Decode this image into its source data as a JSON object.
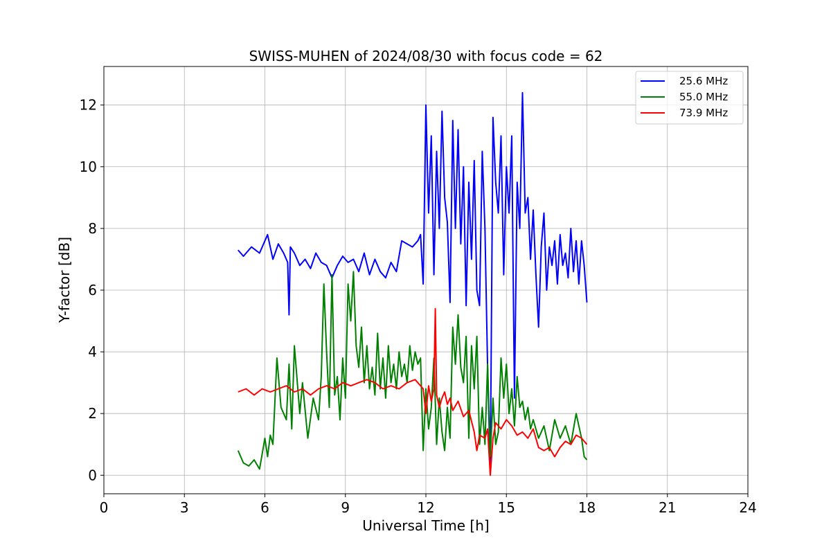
{
  "chart_data": {
    "type": "line",
    "title": "SWISS-MUHEN of 2024/08/30 with focus code = 62",
    "xlabel": "Universal Time [h]",
    "ylabel": "Y-factor [dB]",
    "xlim": [
      0,
      24
    ],
    "ylim": [
      -0.6,
      13.25
    ],
    "xticks": [
      0,
      3,
      6,
      9,
      12,
      15,
      18,
      21,
      24
    ],
    "yticks": [
      0,
      2,
      4,
      6,
      8,
      10,
      12
    ],
    "grid": true,
    "legend_position": "top-right",
    "series": [
      {
        "name": "25.6 MHz",
        "color": "#0000ff",
        "x": [
          5.0,
          5.2,
          5.5,
          5.8,
          6.1,
          6.3,
          6.5,
          6.7,
          6.85,
          6.9,
          6.95,
          7.1,
          7.3,
          7.5,
          7.7,
          7.9,
          8.1,
          8.3,
          8.5,
          8.7,
          8.9,
          9.1,
          9.3,
          9.5,
          9.7,
          9.9,
          10.1,
          10.3,
          10.5,
          10.7,
          10.9,
          11.1,
          11.3,
          11.5,
          11.7,
          11.8,
          11.9,
          12.0,
          12.1,
          12.2,
          12.3,
          12.4,
          12.5,
          12.6,
          12.7,
          12.8,
          12.9,
          13.0,
          13.1,
          13.2,
          13.3,
          13.4,
          13.5,
          13.6,
          13.7,
          13.8,
          13.9,
          14.0,
          14.1,
          14.2,
          14.3,
          14.4,
          14.5,
          14.6,
          14.7,
          14.8,
          14.9,
          15.0,
          15.1,
          15.2,
          15.3,
          15.4,
          15.5,
          15.6,
          15.7,
          15.8,
          15.9,
          16.0,
          16.1,
          16.2,
          16.3,
          16.4,
          16.5,
          16.6,
          16.7,
          16.8,
          16.9,
          17.0,
          17.1,
          17.2,
          17.3,
          17.4,
          17.5,
          17.6,
          17.7,
          17.8,
          17.9,
          18.0
        ],
        "values": [
          7.3,
          7.1,
          7.4,
          7.2,
          7.8,
          7.0,
          7.5,
          7.2,
          6.9,
          5.2,
          7.4,
          7.2,
          6.8,
          7.0,
          6.7,
          7.2,
          6.9,
          6.8,
          6.4,
          6.8,
          7.1,
          6.9,
          7.0,
          6.6,
          7.2,
          6.5,
          7.0,
          6.6,
          6.4,
          6.9,
          6.6,
          7.6,
          7.5,
          7.4,
          7.6,
          7.8,
          6.2,
          12.0,
          8.5,
          11.0,
          6.5,
          10.5,
          8.0,
          11.8,
          9.0,
          8.2,
          5.6,
          11.5,
          8.0,
          11.2,
          7.5,
          10.0,
          5.5,
          9.5,
          7.0,
          10.2,
          6.0,
          5.5,
          10.5,
          8.0,
          3.5,
          0.1,
          11.6,
          9.5,
          8.5,
          11.0,
          6.5,
          10.0,
          8.5,
          11.0,
          2.5,
          9.5,
          8.0,
          12.4,
          8.5,
          9.0,
          7.0,
          8.6,
          6.5,
          4.8,
          7.4,
          8.5,
          6.0,
          7.4,
          6.8,
          7.6,
          6.2,
          7.8,
          6.8,
          7.2,
          6.4,
          8.0,
          6.6,
          7.6,
          6.2,
          7.6,
          6.8,
          5.6
        ]
      },
      {
        "name": "55.0 MHz",
        "color": "#008000",
        "x": [
          5.0,
          5.2,
          5.4,
          5.6,
          5.8,
          6.0,
          6.1,
          6.2,
          6.3,
          6.45,
          6.6,
          6.8,
          6.9,
          7.0,
          7.1,
          7.3,
          7.4,
          7.6,
          7.8,
          8.0,
          8.1,
          8.2,
          8.3,
          8.4,
          8.5,
          8.6,
          8.7,
          8.8,
          8.9,
          9.0,
          9.1,
          9.2,
          9.3,
          9.4,
          9.5,
          9.6,
          9.7,
          9.8,
          9.9,
          10.0,
          10.1,
          10.2,
          10.3,
          10.4,
          10.5,
          10.6,
          10.7,
          10.8,
          10.9,
          11.0,
          11.1,
          11.2,
          11.3,
          11.4,
          11.5,
          11.6,
          11.7,
          11.8,
          11.9,
          12.0,
          12.1,
          12.2,
          12.3,
          12.4,
          12.5,
          12.6,
          12.7,
          12.8,
          12.9,
          13.0,
          13.1,
          13.2,
          13.3,
          13.4,
          13.5,
          13.6,
          13.7,
          13.8,
          13.9,
          14.0,
          14.1,
          14.2,
          14.3,
          14.4,
          14.5,
          14.6,
          14.7,
          14.8,
          14.9,
          15.0,
          15.1,
          15.2,
          15.3,
          15.4,
          15.5,
          15.6,
          15.7,
          15.8,
          15.9,
          16.0,
          16.2,
          16.4,
          16.6,
          16.8,
          17.0,
          17.2,
          17.4,
          17.6,
          17.8,
          17.9,
          18.0
        ],
        "values": [
          0.8,
          0.4,
          0.3,
          0.5,
          0.2,
          1.2,
          0.6,
          1.3,
          1.0,
          3.8,
          2.2,
          1.8,
          3.6,
          1.5,
          4.2,
          2.0,
          3.0,
          1.2,
          2.5,
          1.8,
          3.2,
          6.2,
          4.0,
          2.2,
          6.5,
          2.6,
          3.2,
          1.8,
          3.8,
          2.5,
          6.2,
          5.0,
          6.6,
          4.2,
          3.5,
          4.8,
          3.0,
          4.2,
          2.8,
          3.5,
          2.6,
          4.6,
          2.8,
          3.8,
          2.5,
          4.2,
          3.0,
          3.6,
          2.8,
          4.0,
          3.2,
          3.6,
          3.0,
          4.2,
          3.4,
          4.0,
          3.6,
          3.8,
          0.8,
          2.8,
          1.5,
          2.2,
          3.8,
          1.0,
          2.5,
          1.4,
          0.8,
          2.2,
          1.2,
          4.8,
          3.6,
          5.2,
          3.5,
          3.0,
          4.5,
          1.2,
          4.2,
          2.8,
          4.5,
          1.0,
          2.2,
          1.0,
          3.6,
          0.6,
          2.5,
          1.0,
          1.4,
          3.8,
          2.5,
          3.6,
          2.0,
          2.8,
          1.6,
          3.2,
          2.2,
          2.4,
          1.8,
          2.2,
          1.5,
          1.8,
          1.2,
          1.6,
          0.8,
          1.8,
          1.2,
          1.6,
          1.0,
          2.0,
          1.2,
          0.6,
          0.5
        ]
      },
      {
        "name": "73.9 MHz",
        "color": "#ff0000",
        "x": [
          5.0,
          5.3,
          5.6,
          5.9,
          6.2,
          6.5,
          6.8,
          7.1,
          7.4,
          7.7,
          8.0,
          8.3,
          8.6,
          8.9,
          9.2,
          9.5,
          9.8,
          10.1,
          10.4,
          10.7,
          11.0,
          11.3,
          11.6,
          11.9,
          12.0,
          12.1,
          12.2,
          12.3,
          12.35,
          12.4,
          12.5,
          12.6,
          12.7,
          12.8,
          12.9,
          13.0,
          13.2,
          13.4,
          13.6,
          13.8,
          13.9,
          14.0,
          14.2,
          14.3,
          14.4,
          14.5,
          14.6,
          14.8,
          15.0,
          15.2,
          15.4,
          15.6,
          15.8,
          16.0,
          16.2,
          16.4,
          16.6,
          16.8,
          17.0,
          17.2,
          17.4,
          17.6,
          17.8,
          18.0
        ],
        "values": [
          2.7,
          2.8,
          2.6,
          2.8,
          2.7,
          2.8,
          2.9,
          2.7,
          2.8,
          2.6,
          2.8,
          2.9,
          2.8,
          3.0,
          2.9,
          3.0,
          3.1,
          3.0,
          2.8,
          2.9,
          2.8,
          3.0,
          3.1,
          2.8,
          2.0,
          2.9,
          2.4,
          2.8,
          5.4,
          2.6,
          2.2,
          2.5,
          2.7,
          2.3,
          2.5,
          2.1,
          2.4,
          1.9,
          2.1,
          1.4,
          0.8,
          1.3,
          1.2,
          1.5,
          0.0,
          1.2,
          1.7,
          1.5,
          1.8,
          1.6,
          1.3,
          1.4,
          1.2,
          1.5,
          0.9,
          0.8,
          0.9,
          0.6,
          0.9,
          1.1,
          1.0,
          1.3,
          1.2,
          1.0
        ]
      }
    ]
  }
}
